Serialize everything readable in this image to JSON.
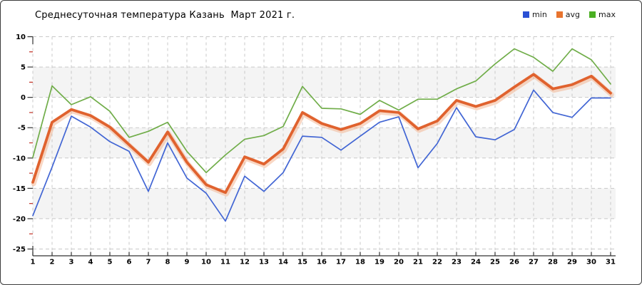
{
  "window": {
    "border_color": "#3c3c3c",
    "background": "#ffffff"
  },
  "chart_data": {
    "type": "line",
    "title": "Среднесуточная температура Казань  Март 2021 г.",
    "xlabel": "",
    "ylabel": "",
    "categories": [
      "1",
      "2",
      "3",
      "4",
      "5",
      "6",
      "7",
      "8",
      "9",
      "10",
      "11",
      "12",
      "13",
      "14",
      "15",
      "16",
      "17",
      "18",
      "19",
      "20",
      "21",
      "22",
      "23",
      "24",
      "25",
      "26",
      "27",
      "28",
      "29",
      "30",
      "31"
    ],
    "series": [
      {
        "name": "min",
        "swatch_color": "#2a50d4",
        "line_color": "#4165d4",
        "thick": false,
        "values": [
          -19.5,
          -11.5,
          -3.1,
          -4.9,
          -7.3,
          -8.9,
          -15.5,
          -7.5,
          -13.3,
          -15.8,
          -20.4,
          -13.0,
          -15.5,
          -12.4,
          -6.4,
          -6.6,
          -8.7,
          -6.4,
          -4.1,
          -3.2,
          -11.6,
          -7.6,
          -1.7,
          -6.5,
          -7.0,
          -5.3,
          1.2,
          -2.5,
          -3.3,
          -0.1,
          -0.1
        ]
      },
      {
        "name": "avg",
        "swatch_color": "#e8742e",
        "line_color": "#e0622e",
        "thick": true,
        "values": [
          -14.0,
          -4.1,
          -2.0,
          -3.0,
          -4.9,
          -7.8,
          -10.7,
          -5.7,
          -10.7,
          -14.4,
          -15.7,
          -9.8,
          -11.0,
          -8.5,
          -2.5,
          -4.3,
          -5.3,
          -4.3,
          -2.2,
          -2.5,
          -5.2,
          -3.9,
          -0.5,
          -1.5,
          -0.5,
          1.7,
          3.8,
          1.4,
          2.1,
          3.5,
          0.7
        ]
      },
      {
        "name": "max",
        "swatch_color": "#4aaf22",
        "line_color": "#70ad49",
        "thick": false,
        "values": [
          -9.9,
          1.9,
          -1.2,
          0.1,
          -2.3,
          -6.6,
          -5.6,
          -4.1,
          -8.9,
          -12.4,
          -9.5,
          -6.9,
          -6.3,
          -4.8,
          1.8,
          -1.8,
          -1.9,
          -2.8,
          -0.5,
          -2.1,
          -0.3,
          -0.3,
          1.4,
          2.7,
          5.5,
          8.0,
          6.6,
          4.3,
          8.0,
          6.2,
          2.2
        ]
      }
    ],
    "ylim": [
      -25,
      10
    ],
    "y_major_step": 5,
    "y_minor_step": 2.5,
    "grid": true,
    "banded_rows": true,
    "legend_position": "top-right",
    "colors": {
      "grid": "#c9c9c9",
      "band": "#f4f4f4",
      "axis": "#333333",
      "minor_tick": "#c23327",
      "tick_label": "#000000",
      "avg_glow": "#f2a97e"
    }
  }
}
